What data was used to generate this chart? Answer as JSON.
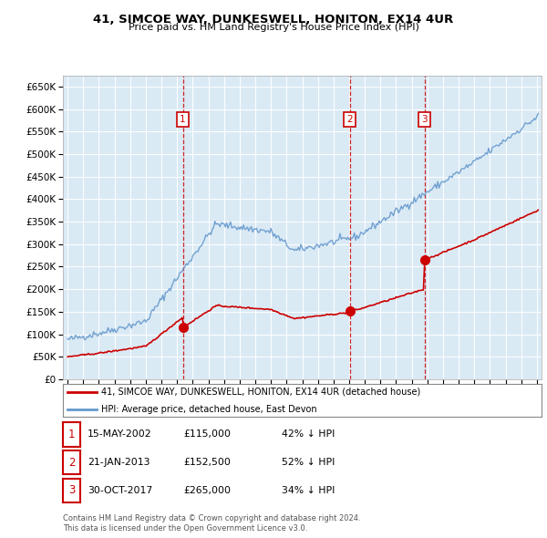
{
  "title": "41, SIMCOE WAY, DUNKESWELL, HONITON, EX14 4UR",
  "subtitle": "Price paid vs. HM Land Registry's House Price Index (HPI)",
  "ylim": [
    0,
    675000
  ],
  "yticks": [
    0,
    50000,
    100000,
    150000,
    200000,
    250000,
    300000,
    350000,
    400000,
    450000,
    500000,
    550000,
    600000,
    650000
  ],
  "xlim_start": 1994.7,
  "xlim_end": 2025.3,
  "background_color": "#daeaf5",
  "red_line_color": "#cc0000",
  "blue_line_color": "#6699cc",
  "legend_line1": "41, SIMCOE WAY, DUNKESWELL, HONITON, EX14 4UR (detached house)",
  "legend_line2": "HPI: Average price, detached house, East Devon",
  "sale_dates": [
    2002.37,
    2013.05,
    2017.83
  ],
  "sale_prices": [
    115000,
    152500,
    265000
  ],
  "sale_labels": [
    "1",
    "2",
    "3"
  ],
  "table_rows": [
    [
      "1",
      "15-MAY-2002",
      "£115,000",
      "42% ↓ HPI"
    ],
    [
      "2",
      "21-JAN-2013",
      "£152,500",
      "52% ↓ HPI"
    ],
    [
      "3",
      "30-OCT-2017",
      "£265,000",
      "34% ↓ HPI"
    ]
  ],
  "footer_line1": "Contains HM Land Registry data © Crown copyright and database right 2024.",
  "footer_line2": "This data is licensed under the Open Government Licence v3.0."
}
